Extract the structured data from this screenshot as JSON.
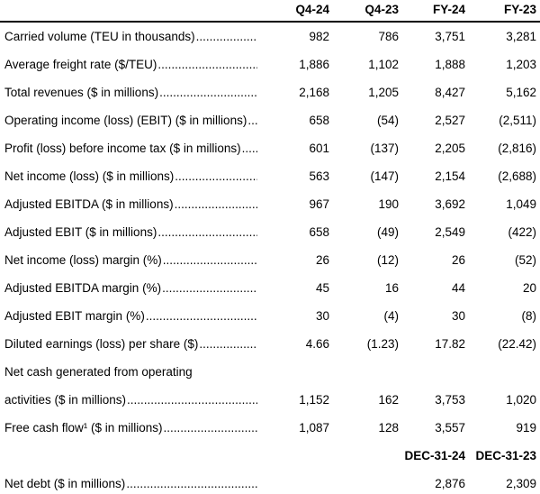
{
  "table": {
    "colors": {
      "text": "#000000",
      "background": "#ffffff",
      "rule": "#000000"
    },
    "columns": [
      "Q4-24",
      "Q4-23",
      "FY-24",
      "FY-23"
    ],
    "rows": [
      {
        "label": "Carried volume (TEU in thousands)",
        "leader": true,
        "bold": false,
        "values": [
          "982",
          "786",
          "3,751",
          "3,281"
        ]
      },
      {
        "label": "Average freight rate ($/TEU)",
        "leader": true,
        "bold": false,
        "values": [
          "1,886",
          "1,102",
          "1,888",
          "1,203"
        ]
      },
      {
        "label": "Total revenues ($ in millions)",
        "leader": true,
        "bold": false,
        "values": [
          "2,168",
          "1,205",
          "8,427",
          "5,162"
        ]
      },
      {
        "label": "Operating income (loss) (EBIT) ($ in millions)",
        "leader": true,
        "bold": false,
        "values": [
          "658",
          "(54)",
          "2,527",
          "(2,511)"
        ]
      },
      {
        "label": "Profit (loss) before income tax ($ in millions)",
        "leader": true,
        "bold": false,
        "values": [
          "601",
          "(137)",
          "2,205",
          "(2,816)"
        ]
      },
      {
        "label": "Net income (loss) ($ in millions)",
        "leader": true,
        "bold": false,
        "values": [
          "563",
          "(147)",
          "2,154",
          "(2,688)"
        ]
      },
      {
        "label": "Adjusted EBITDA ($ in millions)",
        "leader": true,
        "bold": false,
        "values": [
          "967",
          "190",
          "3,692",
          "1,049"
        ]
      },
      {
        "label": "Adjusted EBIT ($ in millions)",
        "leader": true,
        "bold": false,
        "values": [
          "658",
          "(49)",
          "2,549",
          "(422)"
        ]
      },
      {
        "label": "Net income (loss) margin (%)",
        "leader": true,
        "bold": false,
        "values": [
          "26",
          "(12)",
          "26",
          "(52)"
        ]
      },
      {
        "label": "Adjusted EBITDA margin (%)",
        "leader": true,
        "bold": false,
        "values": [
          "45",
          "16",
          "44",
          "20"
        ]
      },
      {
        "label": "Adjusted EBIT margin (%)",
        "leader": true,
        "bold": false,
        "values": [
          "30",
          "(4)",
          "30",
          "(8)"
        ]
      },
      {
        "label": "Diluted earnings (loss) per share ($)",
        "leader": true,
        "bold": false,
        "values": [
          "4.66",
          "(1.23)",
          "17.82",
          "(22.42)"
        ]
      },
      {
        "label": "Net cash generated from operating",
        "leader": false,
        "bold": false,
        "values": [
          "",
          "",
          "",
          ""
        ]
      },
      {
        "label": "activities ($ in millions)",
        "leader": true,
        "bold": false,
        "values": [
          "1,152",
          "162",
          "3,753",
          "1,020"
        ]
      },
      {
        "label": "Free cash flow¹ ($ in millions)",
        "leader": true,
        "bold": false,
        "values": [
          "1,087",
          "128",
          "3,557",
          "919"
        ]
      },
      {
        "label": "",
        "leader": false,
        "bold": true,
        "values": [
          "",
          "",
          "DEC-31-24",
          "DEC-31-23"
        ]
      },
      {
        "label": "Net debt ($ in millions)",
        "leader": true,
        "bold": false,
        "values": [
          "",
          "",
          "2,876",
          "2,309"
        ]
      }
    ]
  }
}
